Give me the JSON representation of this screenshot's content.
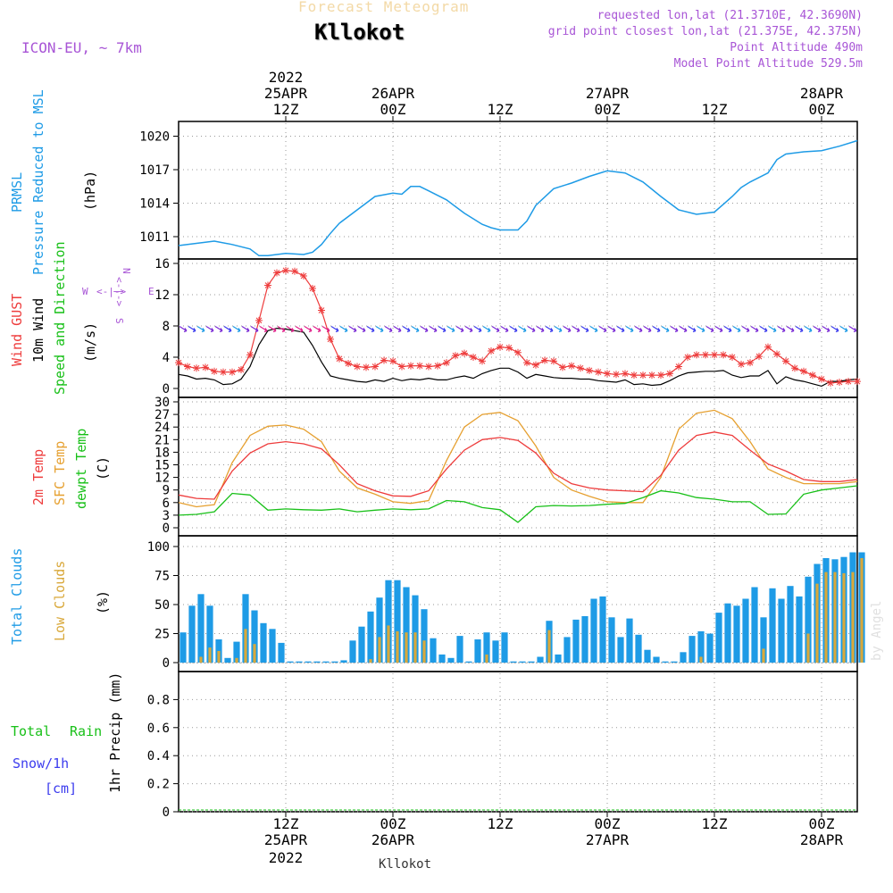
{
  "header": {
    "subtitle": "Forecast Meteogram",
    "location": "Kllokot",
    "model": "ICON-EU, ~ 7km",
    "requested": "requested lon,lat (21.3710E, 42.3690N)",
    "grid_point": "grid point closest lon,lat (21.375E, 42.375N)",
    "point_altitude": "Point Altitude 490m",
    "model_altitude": "Model Point Altitude 529.5m",
    "credit": "by Angel",
    "footer_location": "Kllokot"
  },
  "colors": {
    "pressure": "#1e9be6",
    "gust": "#ee3c3c",
    "wind": "#000000",
    "temp2m": "#ee3c3c",
    "sfctemp": "#e6a030",
    "dewpt": "#18c018",
    "total_clouds": "#1e9be6",
    "low_clouds": "#d9a83a",
    "rain": "#18c018",
    "snow": "#3c3cee",
    "grid": "#999999"
  },
  "time_axis": {
    "top": [
      {
        "h": 12,
        "l1": "2022",
        "l2": "25APR",
        "l3": "12Z"
      },
      {
        "h": 24,
        "l1": "",
        "l2": "26APR",
        "l3": "00Z"
      },
      {
        "h": 36,
        "l1": "",
        "l2": "",
        "l3": "12Z"
      },
      {
        "h": 48,
        "l1": "",
        "l2": "27APR",
        "l3": "00Z"
      },
      {
        "h": 60,
        "l1": "",
        "l2": "",
        "l3": "12Z"
      },
      {
        "h": 72,
        "l1": "",
        "l2": "28APR",
        "l3": "00Z"
      }
    ],
    "bottom": [
      {
        "h": 12,
        "l1": "12Z",
        "l2": "25APR",
        "l3": "2022"
      },
      {
        "h": 24,
        "l1": "00Z",
        "l2": "26APR",
        "l3": ""
      },
      {
        "h": 36,
        "l1": "12Z",
        "l2": "",
        "l3": ""
      },
      {
        "h": 48,
        "l1": "00Z",
        "l2": "27APR",
        "l3": ""
      },
      {
        "h": 60,
        "l1": "12Z",
        "l2": "",
        "l3": ""
      },
      {
        "h": 72,
        "l1": "00Z",
        "l2": "28APR",
        "l3": ""
      }
    ]
  },
  "panels": {
    "pressure": {
      "labels": [
        "PRMSL",
        "Pressure Reduced to MSL",
        "(hPa)"
      ]
    },
    "wind": {
      "labels": [
        "Wind GUST",
        "10m Wind",
        "Speed and Direction",
        "(m/s)"
      ],
      "compass": {
        "n": "N",
        "s": "S",
        "e": "E",
        "w": "W"
      }
    },
    "temp": {
      "labels": [
        "2m Temp",
        "SFC Temp",
        "dewpt Temp",
        "(C)"
      ]
    },
    "clouds": {
      "labels": [
        "Total Clouds",
        "Low Clouds",
        "(%)"
      ]
    },
    "precip": {
      "labels": [
        "Total",
        "Rain",
        "Snow/1h",
        "[cm]",
        "1hr Precip (mm)"
      ]
    }
  },
  "chart_data": [
    {
      "type": "line",
      "title": "PRMSL Pressure Reduced to MSL",
      "ylabel": "hPa",
      "xlim": [
        0,
        76
      ],
      "ylim": [
        1009,
        1021
      ],
      "yticks": [
        1011,
        1014,
        1017,
        1020
      ],
      "x": [
        0,
        2,
        4,
        6,
        8,
        9,
        10,
        12,
        14,
        15,
        16,
        17,
        18,
        20,
        22,
        24,
        25,
        26,
        27,
        28,
        30,
        32,
        34,
        35,
        36,
        38,
        39,
        40,
        42,
        44,
        46,
        48,
        50,
        52,
        54,
        56,
        58,
        60,
        61,
        62,
        63,
        64,
        66,
        67,
        68,
        70,
        72,
        74,
        76
      ],
      "series": [
        {
          "name": "PRMSL",
          "values": [
            1010.2,
            1010.4,
            1010.6,
            1010.3,
            1009.9,
            1009.3,
            1009.3,
            1009.5,
            1009.4,
            1009.6,
            1010.3,
            1011.3,
            1012.2,
            1013.4,
            1014.6,
            1014.9,
            1014.8,
            1015.5,
            1015.5,
            1015.1,
            1014.3,
            1013.1,
            1012.1,
            1011.8,
            1011.6,
            1011.6,
            1012.4,
            1013.8,
            1015.3,
            1015.8,
            1016.4,
            1016.9,
            1016.7,
            1015.9,
            1014.6,
            1013.4,
            1013.0,
            1013.2,
            1013.9,
            1014.6,
            1015.4,
            1015.9,
            1016.7,
            1017.9,
            1018.4,
            1018.6,
            1018.7,
            1019.1,
            1019.6
          ]
        }
      ]
    },
    {
      "type": "line",
      "title": "Wind GUST and 10m Wind",
      "ylabel": "m/s",
      "xlim": [
        0,
        76
      ],
      "ylim": [
        0,
        16
      ],
      "yticks": [
        0,
        4,
        8,
        12,
        16
      ],
      "x": [
        0,
        1,
        2,
        3,
        4,
        5,
        6,
        7,
        8,
        9,
        10,
        11,
        12,
        13,
        14,
        15,
        16,
        17,
        18,
        19,
        20,
        21,
        22,
        23,
        24,
        25,
        26,
        27,
        28,
        29,
        30,
        31,
        32,
        33,
        34,
        35,
        36,
        37,
        38,
        39,
        40,
        41,
        42,
        43,
        44,
        45,
        46,
        47,
        48,
        49,
        50,
        51,
        52,
        53,
        54,
        55,
        56,
        57,
        58,
        59,
        60,
        61,
        62,
        63,
        64,
        65,
        66,
        67,
        68,
        69,
        70,
        71,
        72,
        73,
        74,
        75,
        76
      ],
      "series": [
        {
          "name": "Wind GUST",
          "values": [
            3.3,
            2.8,
            2.6,
            2.7,
            2.2,
            2.1,
            2.1,
            2.4,
            4.3,
            8.7,
            13.2,
            14.8,
            15.1,
            15.0,
            14.4,
            12.8,
            10.0,
            6.3,
            3.8,
            3.2,
            2.8,
            2.7,
            2.8,
            3.6,
            3.5,
            2.8,
            2.9,
            2.9,
            2.8,
            2.9,
            3.3,
            4.2,
            4.5,
            4.0,
            3.5,
            4.8,
            5.3,
            5.2,
            4.6,
            3.3,
            3.0,
            3.6,
            3.5,
            2.7,
            2.9,
            2.6,
            2.3,
            2.1,
            1.9,
            1.8,
            1.9,
            1.7,
            1.7,
            1.7,
            1.7,
            1.9,
            2.8,
            4.0,
            4.3,
            4.3,
            4.3,
            4.3,
            4.0,
            3.1,
            3.3,
            4.1,
            5.3,
            4.4,
            3.5,
            2.6,
            2.2,
            1.7,
            1.2,
            0.7,
            0.8,
            0.9,
            0.9
          ]
        },
        {
          "name": "10m Wind",
          "values": [
            1.8,
            1.6,
            1.2,
            1.3,
            1.1,
            0.5,
            0.6,
            1.2,
            2.8,
            5.6,
            7.4,
            7.7,
            7.6,
            7.4,
            7.2,
            5.5,
            3.4,
            1.6,
            1.3,
            1.1,
            0.9,
            0.8,
            1.1,
            0.9,
            1.3,
            1.0,
            1.2,
            1.1,
            1.3,
            1.1,
            1.1,
            1.4,
            1.6,
            1.3,
            1.9,
            2.3,
            2.6,
            2.6,
            2.1,
            1.3,
            1.8,
            1.6,
            1.4,
            1.3,
            1.3,
            1.2,
            1.2,
            1.0,
            0.9,
            0.8,
            1.1,
            0.5,
            0.6,
            0.4,
            0.5,
            1.0,
            1.6,
            2.0,
            2.1,
            2.2,
            2.2,
            2.3,
            1.7,
            1.4,
            1.6,
            1.6,
            2.3,
            0.6,
            1.5,
            1.1,
            0.9,
            0.6,
            0.3,
            0.9,
            0.9,
            1.1,
            1.2
          ]
        }
      ]
    },
    {
      "type": "line",
      "title": "2m Temp, SFC Temp, dewpt Temp",
      "ylabel": "C",
      "xlim": [
        0,
        76
      ],
      "ylim": [
        0,
        30
      ],
      "yticks": [
        0,
        3,
        6,
        9,
        12,
        15,
        18,
        21,
        24,
        27,
        30
      ],
      "x": [
        0,
        2,
        4,
        6,
        8,
        10,
        12,
        14,
        16,
        18,
        20,
        22,
        24,
        26,
        28,
        30,
        32,
        34,
        36,
        38,
        40,
        42,
        44,
        46,
        48,
        50,
        52,
        54,
        56,
        58,
        60,
        62,
        64,
        66,
        68,
        70,
        72,
        74,
        76
      ],
      "series": [
        {
          "name": "2m Temp",
          "values": [
            7.8,
            7.0,
            6.8,
            13.5,
            17.8,
            20.0,
            20.5,
            20.0,
            18.8,
            15.0,
            10.5,
            8.8,
            7.6,
            7.5,
            8.8,
            14.0,
            18.5,
            21.0,
            21.5,
            20.8,
            17.8,
            13.0,
            10.5,
            9.5,
            9.0,
            8.8,
            8.6,
            12.5,
            18.5,
            22.0,
            22.8,
            22.0,
            18.5,
            15.2,
            13.5,
            11.5,
            11.0,
            11.0,
            11.5
          ]
        },
        {
          "name": "SFC Temp",
          "values": [
            6.0,
            5.0,
            5.5,
            15.5,
            22.0,
            24.2,
            24.5,
            23.5,
            20.5,
            13.5,
            9.5,
            8.0,
            6.2,
            5.8,
            6.5,
            16.0,
            24.0,
            27.0,
            27.5,
            25.5,
            19.5,
            12.0,
            9.0,
            7.5,
            6.2,
            6.0,
            6.0,
            12.0,
            23.5,
            27.3,
            28.0,
            26.0,
            20.5,
            14.0,
            12.0,
            10.5,
            10.5,
            10.5,
            11.0
          ]
        },
        {
          "name": "dewpt Temp",
          "values": [
            3.0,
            3.2,
            3.8,
            8.2,
            7.8,
            4.2,
            4.5,
            4.3,
            4.2,
            4.5,
            3.8,
            4.2,
            4.5,
            4.3,
            4.5,
            6.5,
            6.2,
            4.8,
            4.3,
            1.3,
            5.0,
            5.3,
            5.2,
            5.3,
            5.6,
            5.8,
            7.2,
            8.8,
            8.3,
            7.2,
            6.8,
            6.2,
            6.2,
            3.2,
            3.3,
            8.0,
            9.0,
            9.5,
            10.0
          ]
        }
      ]
    },
    {
      "type": "bar",
      "title": "Total Clouds and Low Clouds",
      "ylabel": "%",
      "xlim": [
        0,
        76
      ],
      "ylim": [
        0,
        100
      ],
      "yticks": [
        0,
        25,
        50,
        75,
        100
      ],
      "x": [
        0,
        1,
        2,
        3,
        4,
        5,
        6,
        7,
        8,
        9,
        10,
        11,
        12,
        13,
        14,
        15,
        16,
        17,
        18,
        19,
        20,
        21,
        22,
        23,
        24,
        25,
        26,
        27,
        28,
        29,
        30,
        31,
        32,
        33,
        34,
        35,
        36,
        37,
        38,
        39,
        40,
        41,
        42,
        43,
        44,
        45,
        46,
        47,
        48,
        49,
        50,
        51,
        52,
        53,
        54,
        55,
        56,
        57,
        58,
        59,
        60,
        61,
        62,
        63,
        64,
        65,
        66,
        67,
        68,
        69,
        70,
        71,
        72,
        73,
        74,
        75,
        76
      ],
      "series": [
        {
          "name": "Total Clouds",
          "values": [
            26,
            49,
            59,
            49,
            20,
            4,
            18,
            59,
            45,
            34,
            29,
            17,
            1,
            1,
            1,
            1,
            1,
            1,
            2,
            19,
            31,
            44,
            56,
            71,
            71,
            65,
            58,
            46,
            21,
            7,
            4,
            23,
            1,
            20,
            26,
            19,
            26,
            1,
            1,
            1,
            5,
            36,
            7,
            22,
            37,
            40,
            55,
            57,
            39,
            22,
            38,
            24,
            11,
            5,
            1,
            1,
            9,
            23,
            27,
            25,
            43,
            51,
            49,
            55,
            65,
            39,
            64,
            55,
            66,
            57,
            74,
            85,
            90,
            89,
            91,
            95,
            95
          ]
        },
        {
          "name": "Low Clouds",
          "values": [
            0,
            0,
            5,
            13,
            10,
            0,
            4,
            29,
            16,
            0,
            0,
            0,
            0,
            0,
            0,
            0,
            0,
            0,
            0,
            0,
            0,
            3,
            22,
            32,
            27,
            26,
            26,
            19,
            0,
            0,
            0,
            0,
            0,
            0,
            7,
            0,
            0,
            0,
            0,
            0,
            0,
            28,
            0,
            0,
            0,
            0,
            0,
            0,
            0,
            0,
            0,
            0,
            0,
            0,
            0,
            0,
            0,
            0,
            5,
            0,
            0,
            0,
            0,
            0,
            0,
            12,
            0,
            0,
            0,
            0,
            25,
            68,
            78,
            78,
            77,
            78,
            90
          ]
        }
      ]
    },
    {
      "type": "bar",
      "title": "1hr Precip",
      "ylabel": "1hr Precip (mm)",
      "xlim": [
        0,
        76
      ],
      "ylim": [
        0,
        1
      ],
      "yticks": [
        0,
        0.2,
        0.4,
        0.6,
        0.8
      ],
      "series": [
        {
          "name": "Total Rain",
          "values": []
        },
        {
          "name": "Snow/1h",
          "values": []
        }
      ]
    }
  ]
}
